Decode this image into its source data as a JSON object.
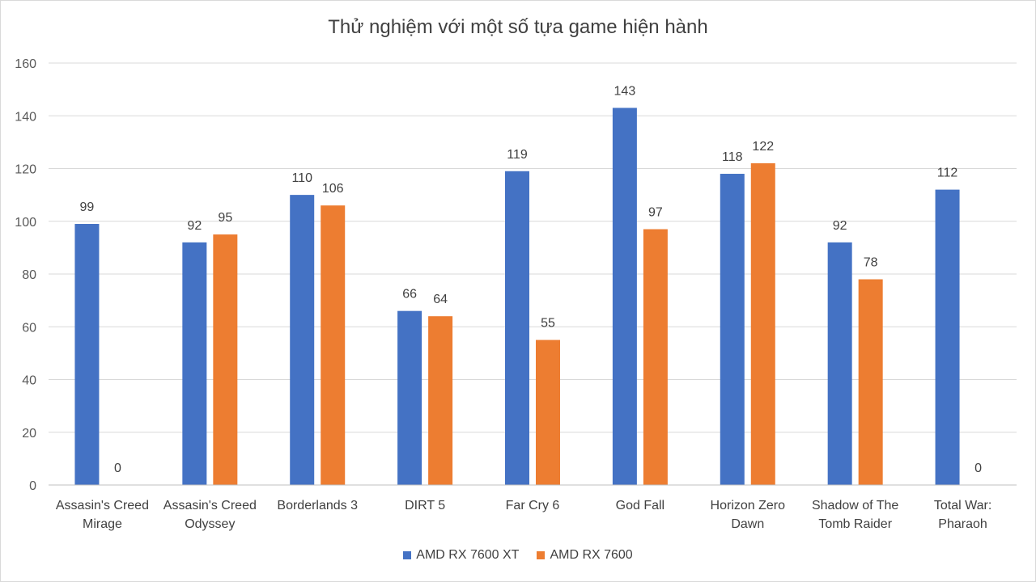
{
  "chart_data": {
    "type": "bar",
    "title": "Thử nghiệm với một số tựa game hiện hành",
    "categories": [
      [
        "Assasin's Creed",
        "Mirage"
      ],
      [
        "Assasin's Creed",
        "Odyssey"
      ],
      [
        "Borderlands 3"
      ],
      [
        "DIRT 5"
      ],
      [
        "Far Cry 6"
      ],
      [
        "God Fall"
      ],
      [
        "Horizon Zero",
        "Dawn"
      ],
      [
        "Shadow of The",
        "Tomb Raider"
      ],
      [
        "Total War:",
        "Pharaoh"
      ]
    ],
    "series": [
      {
        "name": "AMD RX 7600 XT",
        "color": "#4472c4",
        "values": [
          99,
          92,
          110,
          66,
          119,
          143,
          118,
          92,
          112
        ]
      },
      {
        "name": "AMD RX 7600",
        "color": "#ed7d31",
        "values": [
          0,
          95,
          106,
          64,
          55,
          97,
          122,
          78,
          0
        ]
      }
    ],
    "ylim": [
      0,
      160
    ],
    "yticks": [
      0,
      20,
      40,
      60,
      80,
      100,
      120,
      140,
      160
    ],
    "grid": true,
    "legend": "bottom"
  }
}
